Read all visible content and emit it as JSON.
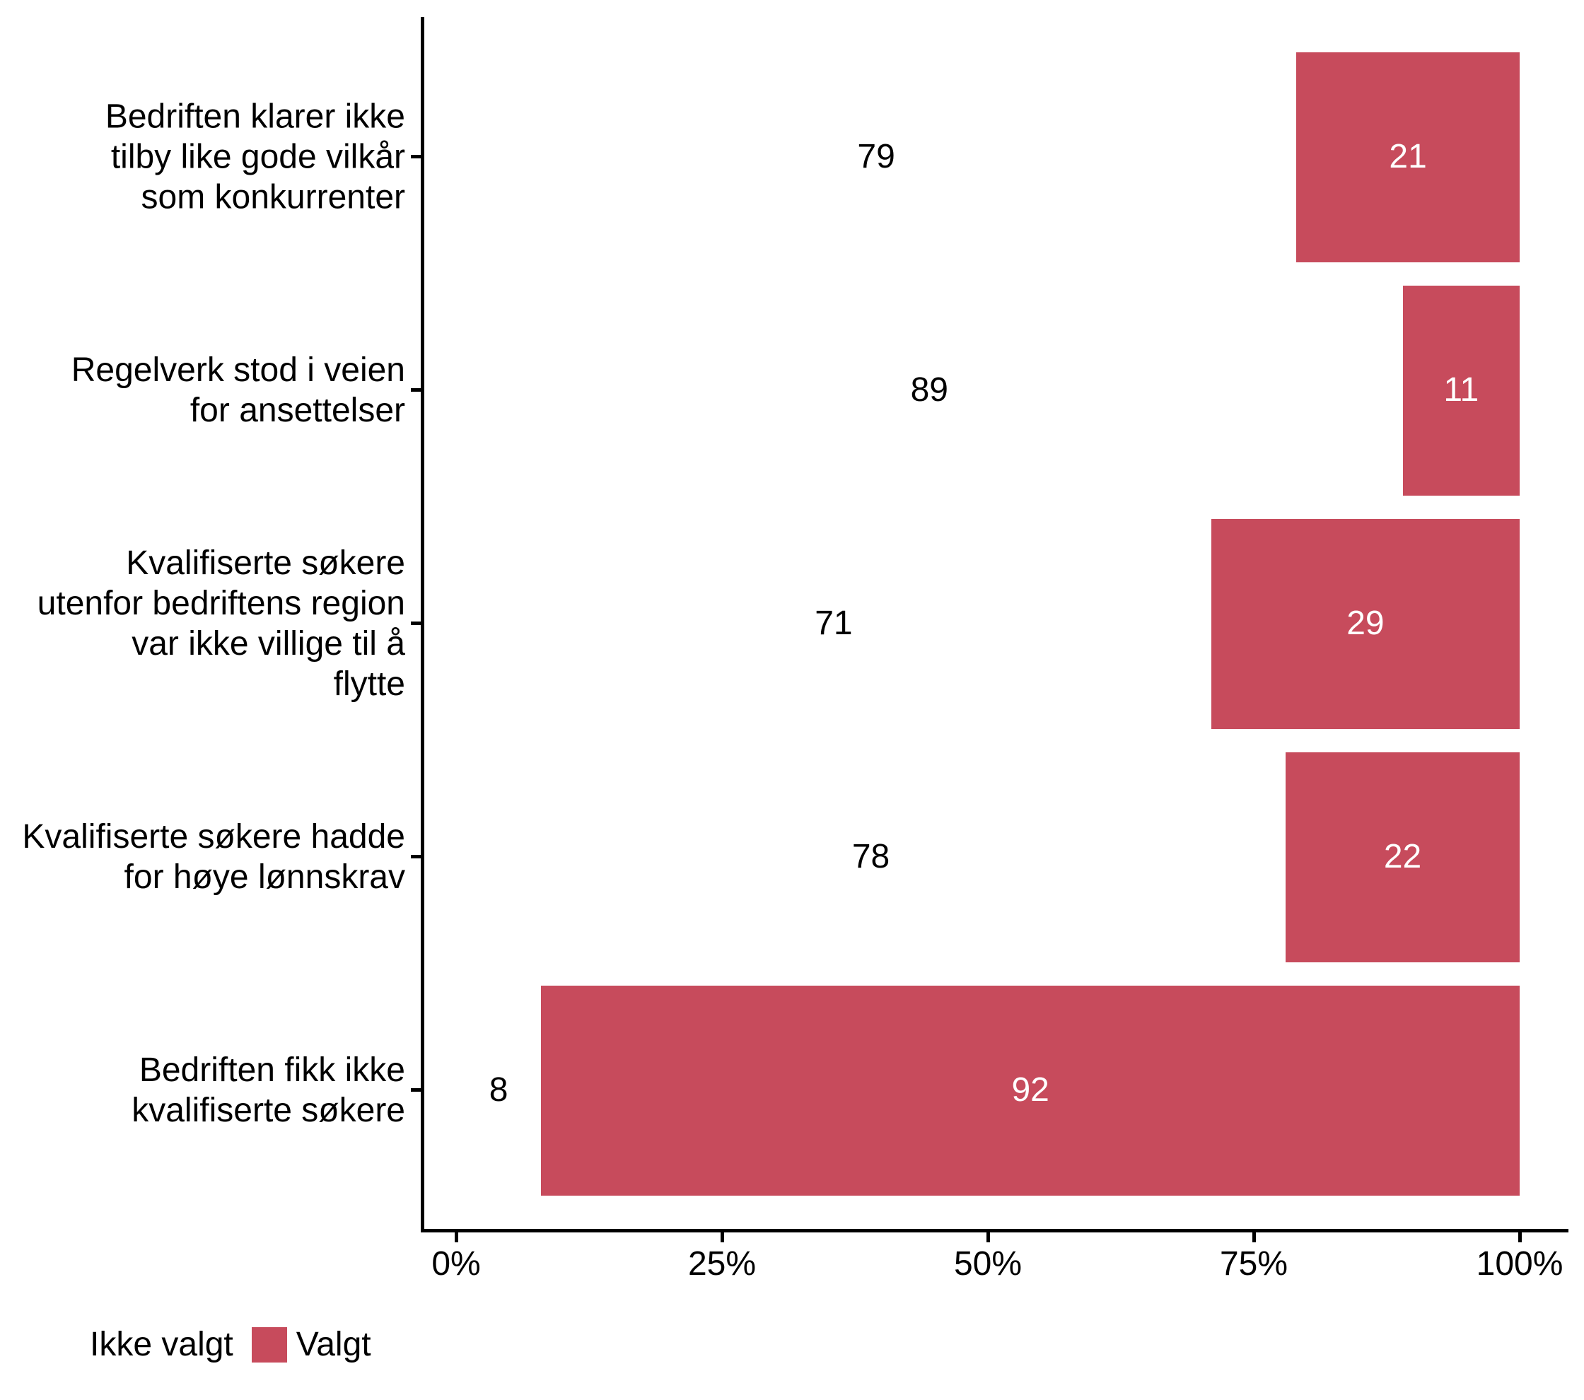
{
  "chart_data": {
    "type": "bar",
    "orientation": "horizontal",
    "stacked": true,
    "title": "",
    "unit": "percent",
    "categories": [
      {
        "label": "Bedriften klarer ikke tilby like gode vilkår som konkurrenter",
        "lines": [
          "Bedriften klarer ikke",
          "tilby like gode vilkår",
          "som konkurrenter"
        ]
      },
      {
        "label": "Regelverk stod i veien for ansettelser",
        "lines": [
          "Regelverk stod i veien",
          "for ansettelser"
        ]
      },
      {
        "label": "Kvalifiserte søkere utenfor bedriftens region var ikke villige til å flytte",
        "lines": [
          "Kvalifiserte søkere",
          "utenfor bedriftens region",
          "var ikke villige til å",
          "flytte"
        ]
      },
      {
        "label": "Kvalifiserte søkere hadde for høye lønnskrav",
        "lines": [
          "Kvalifiserte søkere hadde",
          "for høye lønnskrav"
        ]
      },
      {
        "label": "Bedriften fikk ikke kvalifiserte søkere",
        "lines": [
          "Bedriften fikk ikke",
          "kvalifiserte søkere"
        ]
      }
    ],
    "series": [
      {
        "name": "Ikke valgt",
        "color": "#FFFFFF",
        "label_color": "#000000",
        "values": [
          79,
          89,
          71,
          78,
          8
        ]
      },
      {
        "name": "Valgt",
        "color": "#C74B5C",
        "label_color": "#FFFFFF",
        "values": [
          21,
          11,
          29,
          22,
          92
        ]
      }
    ],
    "x_axis": {
      "tick_labels": [
        "0%",
        "25%",
        "50%",
        "75%",
        "100%"
      ],
      "min": 0,
      "max": 100
    },
    "legend_position": "bottom-left",
    "grid": false,
    "axis_color": "#000000",
    "text_color": "#000000",
    "background_color": "#FFFFFF"
  }
}
